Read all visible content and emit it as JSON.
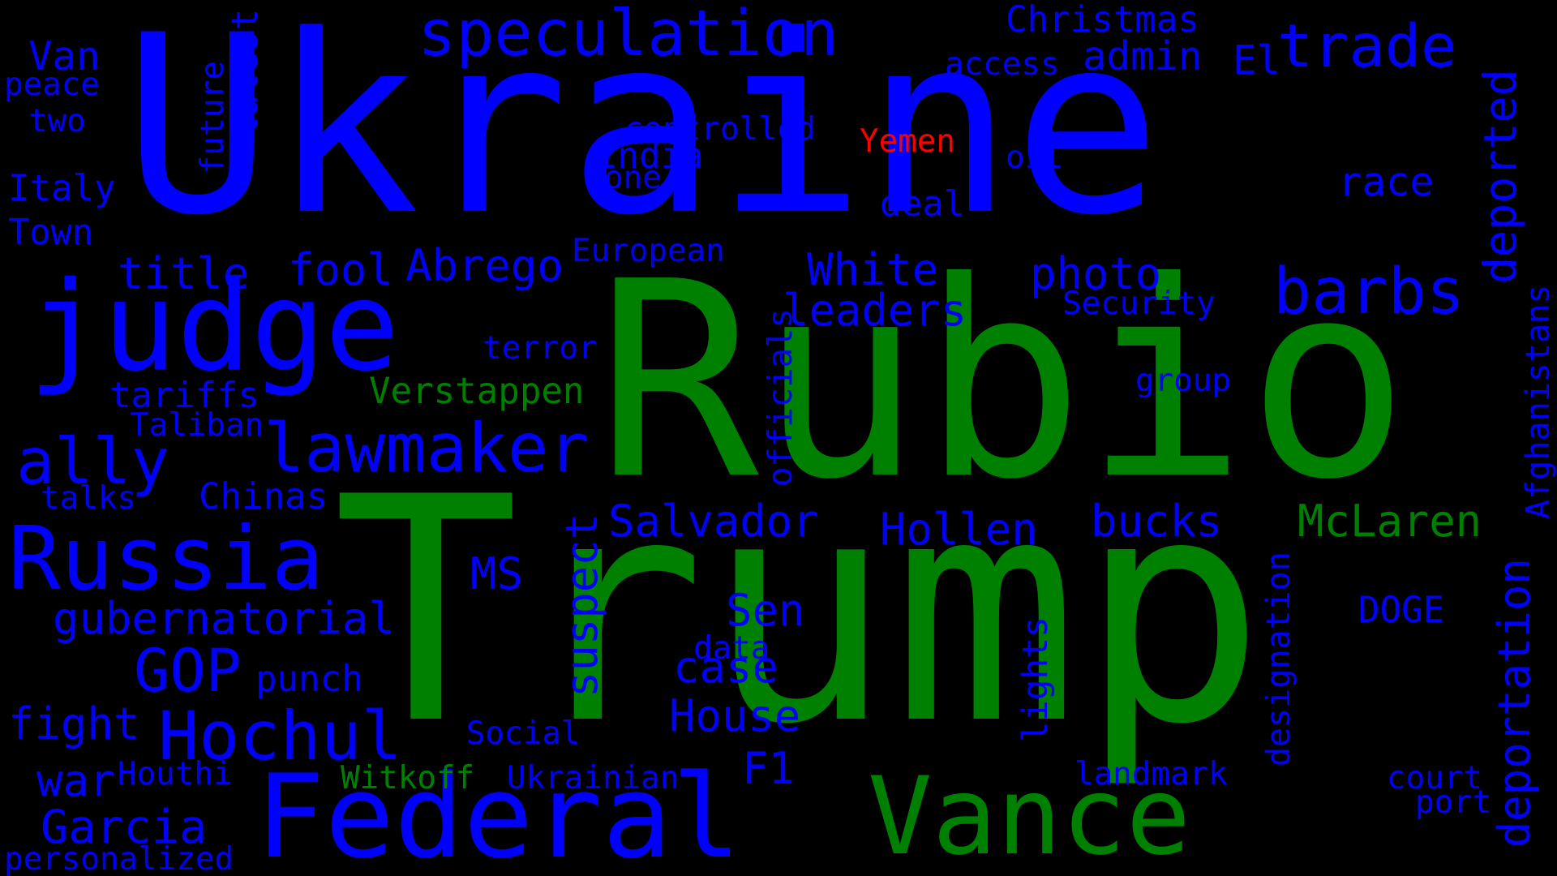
{
  "colors": {
    "background": "#000000",
    "blue": "#0000ff",
    "green": "#008000",
    "red": "#ff0000"
  },
  "words": [
    {
      "id": "ukraine",
      "text": "Ukraine",
      "color": "blue"
    },
    {
      "id": "rubio",
      "text": "Rubio",
      "color": "green"
    },
    {
      "id": "trump",
      "text": "Trump",
      "color": "green"
    },
    {
      "id": "judge",
      "text": "judge",
      "color": "blue"
    },
    {
      "id": "federal",
      "text": "Federal",
      "color": "blue"
    },
    {
      "id": "vance",
      "text": "Vance",
      "color": "green"
    },
    {
      "id": "russia",
      "text": "Russia",
      "color": "blue"
    },
    {
      "id": "speculation",
      "text": "speculation",
      "color": "blue"
    },
    {
      "id": "trade",
      "text": "trade",
      "color": "blue"
    },
    {
      "id": "lawmaker",
      "text": "lawmaker",
      "color": "blue"
    },
    {
      "id": "ally",
      "text": "ally",
      "color": "blue"
    },
    {
      "id": "barbs",
      "text": "barbs",
      "color": "blue"
    },
    {
      "id": "hochul",
      "text": "Hochul",
      "color": "blue"
    },
    {
      "id": "gop",
      "text": "GOP",
      "color": "blue"
    },
    {
      "id": "van",
      "text": "Van",
      "color": "blue"
    },
    {
      "id": "admin",
      "text": "admin",
      "color": "blue"
    },
    {
      "id": "el",
      "text": "El",
      "color": "blue"
    },
    {
      "id": "christmas",
      "text": "Christmas",
      "color": "blue"
    },
    {
      "id": "access",
      "text": "access",
      "color": "blue"
    },
    {
      "id": "peace",
      "text": "peace",
      "color": "blue"
    },
    {
      "id": "two",
      "text": "two",
      "color": "blue"
    },
    {
      "id": "future",
      "text": "future",
      "color": "blue"
    },
    {
      "id": "latest",
      "text": "latest",
      "color": "blue"
    },
    {
      "id": "controlled",
      "text": "controlled",
      "color": "blue"
    },
    {
      "id": "yemen",
      "text": "Yemen",
      "color": "red"
    },
    {
      "id": "oil",
      "text": "oil",
      "color": "blue"
    },
    {
      "id": "india",
      "text": "India",
      "color": "blue"
    },
    {
      "id": "one",
      "text": "one",
      "color": "blue"
    },
    {
      "id": "race",
      "text": "race",
      "color": "blue"
    },
    {
      "id": "deported",
      "text": "deported",
      "color": "blue"
    },
    {
      "id": "italy",
      "text": "Italy",
      "color": "blue"
    },
    {
      "id": "deal",
      "text": "deal",
      "color": "blue"
    },
    {
      "id": "town",
      "text": "Town",
      "color": "blue"
    },
    {
      "id": "european",
      "text": "European",
      "color": "blue"
    },
    {
      "id": "title",
      "text": "title",
      "color": "blue"
    },
    {
      "id": "fool",
      "text": "fool",
      "color": "blue"
    },
    {
      "id": "abrego",
      "text": "Abrego",
      "color": "blue"
    },
    {
      "id": "white",
      "text": "White",
      "color": "blue"
    },
    {
      "id": "photo",
      "text": "photo",
      "color": "blue"
    },
    {
      "id": "leaders",
      "text": "leaders",
      "color": "blue"
    },
    {
      "id": "security",
      "text": "Security",
      "color": "blue"
    },
    {
      "id": "afghanistans",
      "text": "Afghanistans",
      "color": "blue"
    },
    {
      "id": "terror",
      "text": "terror",
      "color": "blue"
    },
    {
      "id": "officials",
      "text": "officials",
      "color": "blue"
    },
    {
      "id": "tariffs",
      "text": "tariffs",
      "color": "blue"
    },
    {
      "id": "verstappen",
      "text": "Verstappen",
      "color": "green"
    },
    {
      "id": "group",
      "text": "group",
      "color": "blue"
    },
    {
      "id": "taliban",
      "text": "Taliban",
      "color": "blue"
    },
    {
      "id": "talks",
      "text": "talks",
      "color": "blue"
    },
    {
      "id": "chinas",
      "text": "Chinas",
      "color": "blue"
    },
    {
      "id": "salvador",
      "text": "Salvador",
      "color": "blue"
    },
    {
      "id": "hollen",
      "text": "Hollen",
      "color": "blue"
    },
    {
      "id": "bucks",
      "text": "bucks",
      "color": "blue"
    },
    {
      "id": "mclaren",
      "text": "McLaren",
      "color": "green"
    },
    {
      "id": "suspect",
      "text": "suspect",
      "color": "blue"
    },
    {
      "id": "ms",
      "text": "MS",
      "color": "blue"
    },
    {
      "id": "deportation",
      "text": "deportation",
      "color": "blue"
    },
    {
      "id": "gubernatorial",
      "text": "gubernatorial",
      "color": "blue"
    },
    {
      "id": "sen",
      "text": "Sen",
      "color": "blue"
    },
    {
      "id": "doge",
      "text": "DOGE",
      "color": "blue"
    },
    {
      "id": "designation",
      "text": "designation",
      "color": "blue"
    },
    {
      "id": "data",
      "text": "data",
      "color": "blue"
    },
    {
      "id": "punch",
      "text": "punch",
      "color": "blue"
    },
    {
      "id": "case",
      "text": "case",
      "color": "blue"
    },
    {
      "id": "lights",
      "text": "lights",
      "color": "blue"
    },
    {
      "id": "fight",
      "text": "fight",
      "color": "blue"
    },
    {
      "id": "house",
      "text": "House",
      "color": "blue"
    },
    {
      "id": "social",
      "text": "Social",
      "color": "blue"
    },
    {
      "id": "war",
      "text": "war",
      "color": "blue"
    },
    {
      "id": "houthi",
      "text": "Houthi",
      "color": "blue"
    },
    {
      "id": "f1",
      "text": "F1",
      "color": "blue"
    },
    {
      "id": "witkoff",
      "text": "Witkoff",
      "color": "green"
    },
    {
      "id": "ukrainian",
      "text": "Ukrainian",
      "color": "blue"
    },
    {
      "id": "landmark",
      "text": "landmark",
      "color": "blue"
    },
    {
      "id": "court",
      "text": "court",
      "color": "blue"
    },
    {
      "id": "port",
      "text": "port",
      "color": "blue"
    },
    {
      "id": "garcia",
      "text": "Garcia",
      "color": "blue"
    },
    {
      "id": "personalized",
      "text": "personalized",
      "color": "blue"
    }
  ]
}
